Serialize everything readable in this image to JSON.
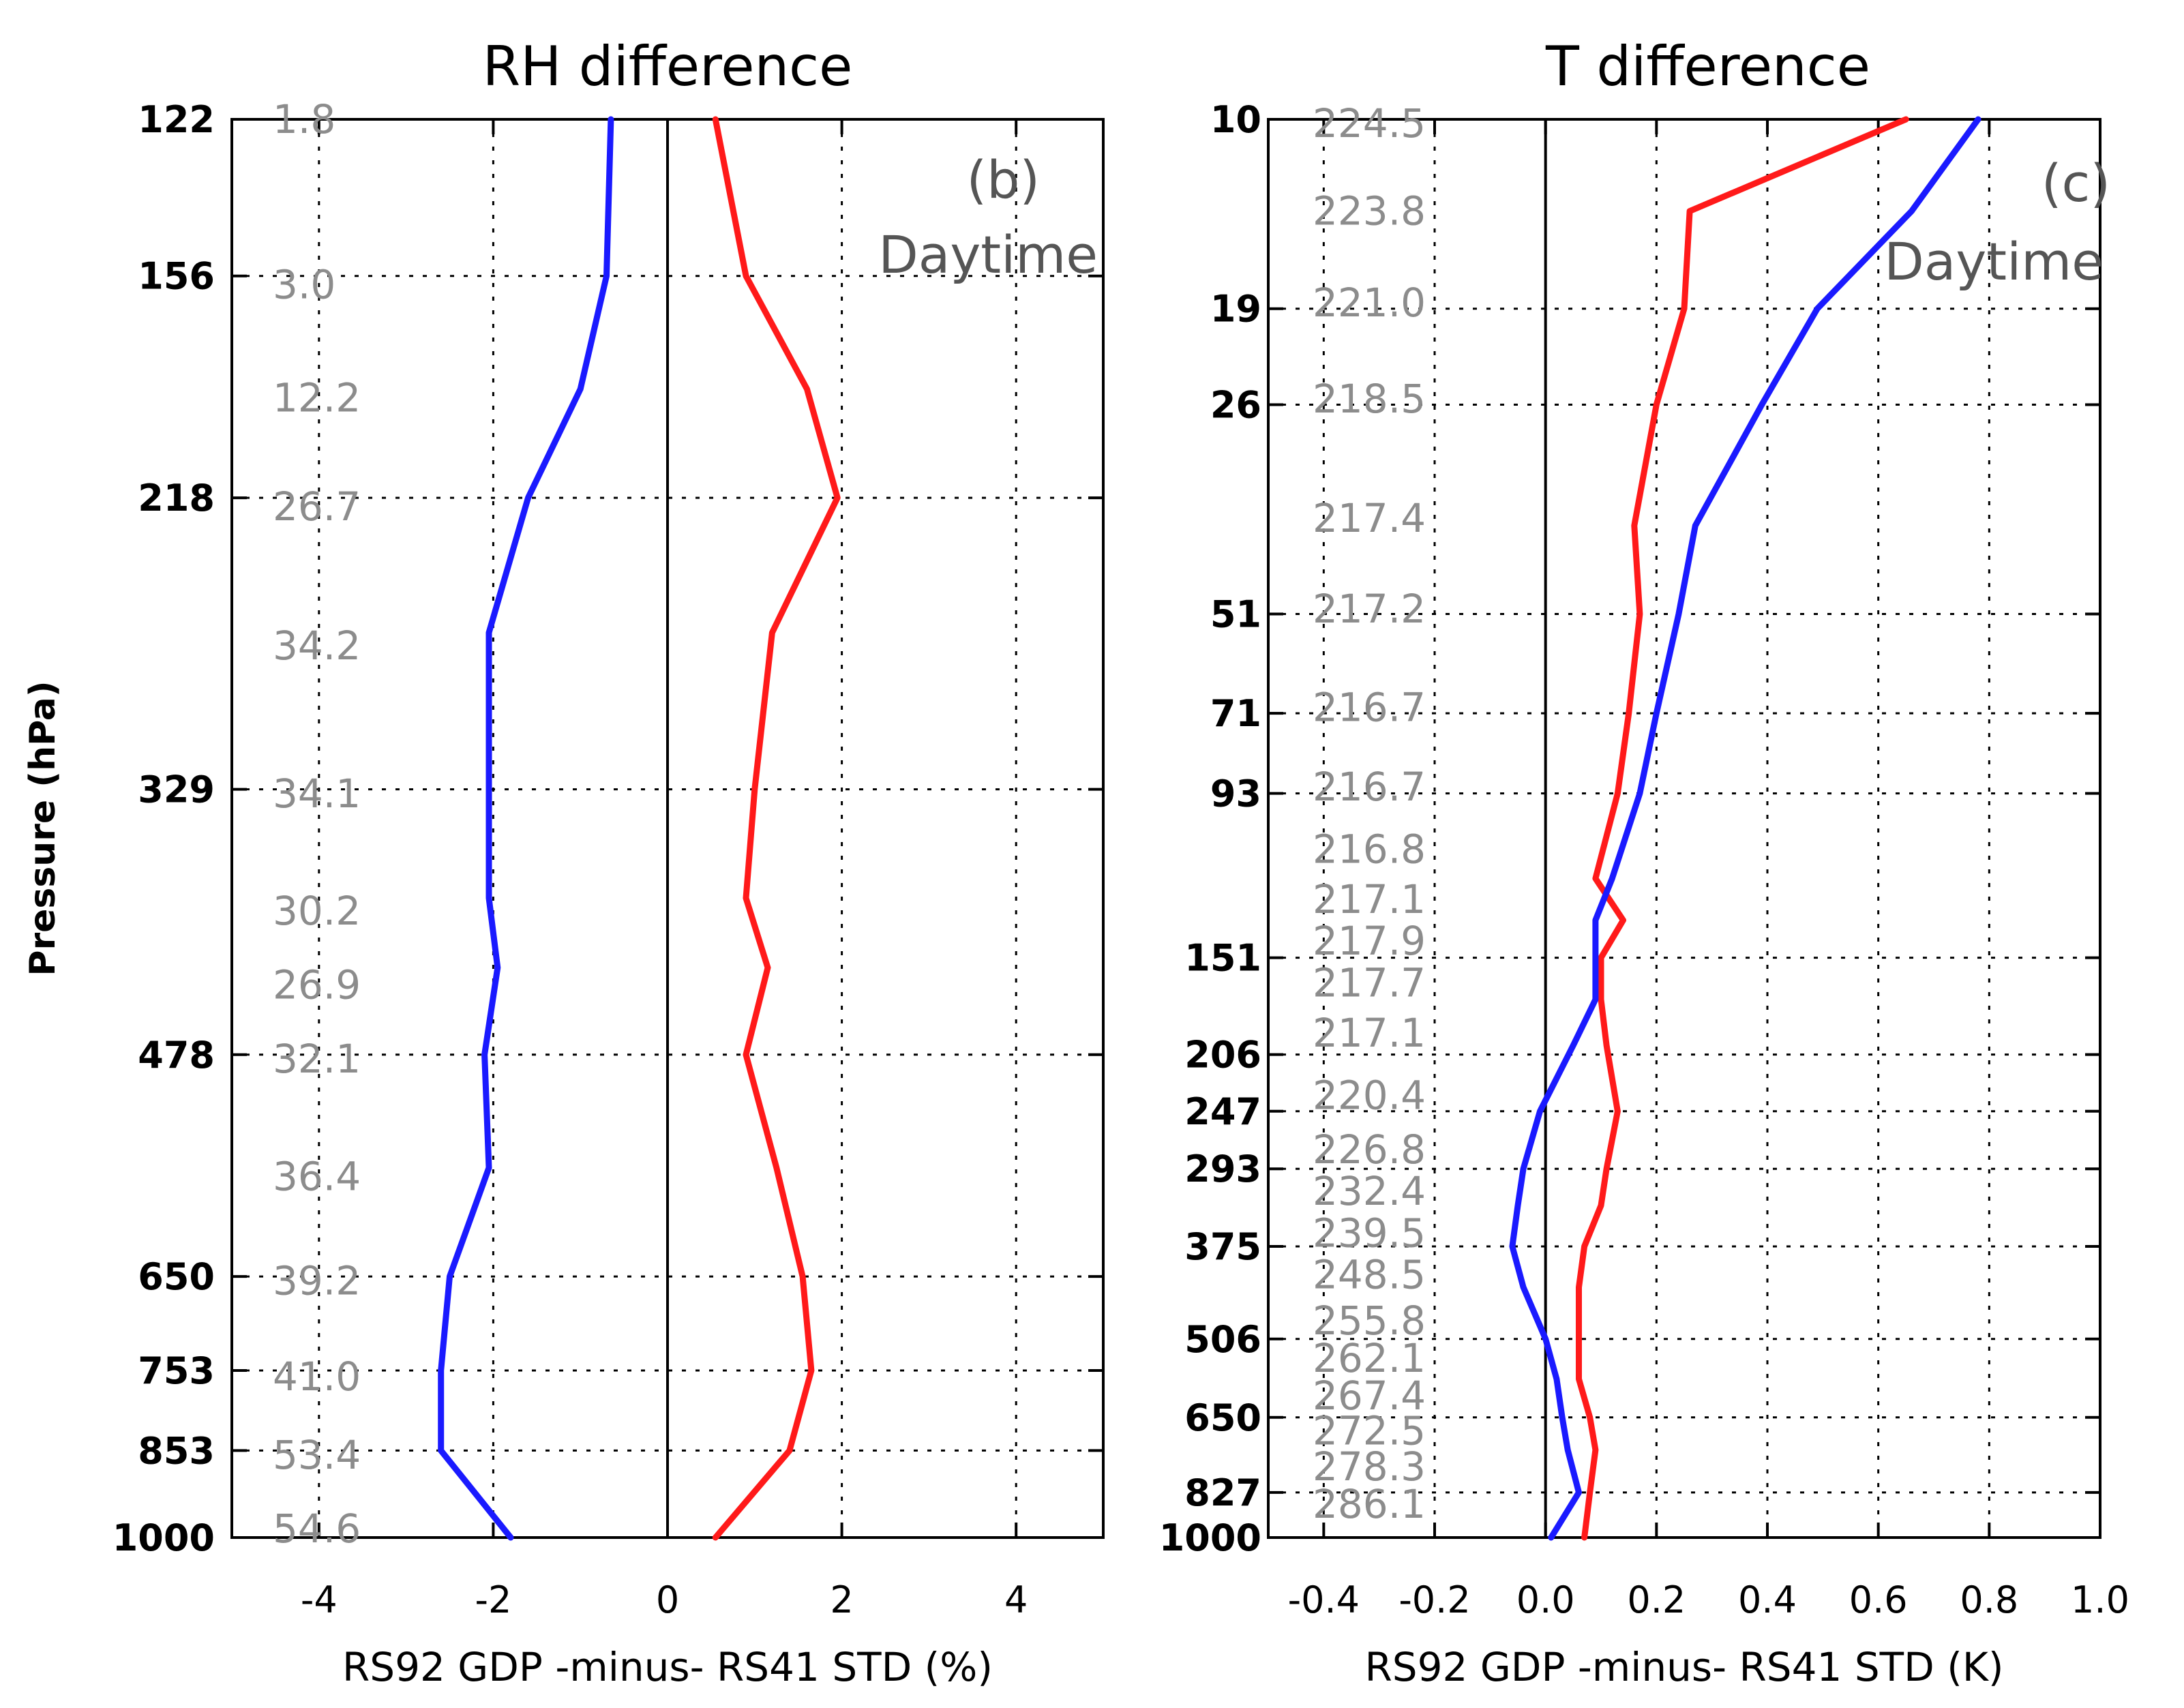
{
  "chart_data": [
    {
      "type": "line",
      "title": "RH difference",
      "panel_label": "(b)",
      "time_label": "Daytime",
      "xlabel": "RS92 GDP -minus- RS41 STD (%)",
      "ylabel": "Pressure (hPa)",
      "xlim": [
        -5,
        5
      ],
      "x_ticks": [
        "-4",
        "-2",
        "0",
        "2",
        "4"
      ],
      "x_tick_values": [
        -4,
        -2,
        0,
        2,
        4
      ],
      "y_ticks": [
        "122",
        "156",
        "218",
        "329",
        "478",
        "650",
        "753",
        "853",
        "1000"
      ],
      "y_tick_levels": [
        0,
        1.8,
        4.35,
        7.7,
        10.75,
        13.3,
        14.38,
        15.3,
        16.3
      ],
      "levels": [
        0,
        1.8,
        3.1,
        4.35,
        5.9,
        7.7,
        8.95,
        9.75,
        10.75,
        12.05,
        13.3,
        14.38,
        15.3,
        16.3
      ],
      "annotations": [
        "1.8",
        "3.0",
        "12.2",
        "26.7",
        "34.2",
        "34.1",
        "30.2",
        "26.9",
        "32.1",
        "36.4",
        "39.2",
        "41.0",
        "53.4",
        "54.6"
      ],
      "annotation_levels": [
        0.0,
        1.9,
        3.2,
        4.45,
        6.05,
        7.75,
        9.1,
        9.95,
        10.8,
        12.15,
        13.35,
        14.45,
        15.35,
        16.2
      ],
      "series": [
        {
          "name": "blue",
          "color": "#1a1aff",
          "x": [
            -0.65,
            -0.7,
            -1.0,
            -1.6,
            -2.05,
            -2.05,
            -2.05,
            -1.95,
            -2.1,
            -2.05,
            -2.5,
            -2.6,
            -2.6,
            -1.8
          ]
        },
        {
          "name": "red",
          "color": "#ff1a1a",
          "x": [
            0.55,
            0.9,
            1.6,
            1.95,
            1.2,
            1.0,
            0.9,
            1.15,
            0.9,
            1.25,
            1.55,
            1.65,
            1.4,
            0.55
          ]
        }
      ]
    },
    {
      "type": "line",
      "title": "T difference",
      "panel_label": "(c)",
      "time_label": "Daytime",
      "xlabel": "RS92 GDP -minus- RS41 STD (K)",
      "ylabel": "",
      "xlim": [
        -0.5,
        1.0
      ],
      "x_ticks": [
        "-0.4",
        "-0.2",
        "0.0",
        "0.2",
        "0.4",
        "0.6",
        "0.8",
        "1.0"
      ],
      "x_tick_values": [
        -0.4,
        -0.2,
        0.0,
        0.2,
        0.4,
        0.6,
        0.8,
        1.0
      ],
      "y_ticks": [
        "10",
        "19",
        "26",
        "51",
        "71",
        "93",
        "151",
        "206",
        "247",
        "293",
        "375",
        "506",
        "650",
        "827",
        "1000"
      ],
      "y_tick_levels": [
        0,
        2.27,
        3.42,
        5.93,
        7.12,
        8.08,
        10.05,
        11.21,
        11.89,
        12.58,
        13.51,
        14.62,
        15.56,
        16.46,
        17.0
      ],
      "levels": [
        0,
        1.1,
        2.27,
        3.42,
        4.87,
        5.93,
        7.12,
        8.08,
        9.1,
        9.6,
        10.05,
        10.55,
        11.1,
        11.89,
        12.58,
        13.02,
        13.51,
        14.0,
        14.62,
        15.1,
        15.56,
        15.95,
        16.46,
        17.0
      ],
      "annotations": [
        "224.5",
        "223.8",
        "221.0",
        "218.5",
        "217.4",
        "217.2",
        "216.7",
        "216.7",
        "216.8",
        "217.1",
        "217.9",
        "217.7",
        "217.1",
        "220.4",
        "226.8",
        "232.4",
        "239.5",
        "248.5",
        "255.8",
        "262.1",
        "267.4",
        "272.5",
        "278.3",
        "286.1"
      ],
      "annotation_levels": [
        0.05,
        1.1,
        2.2,
        3.35,
        4.78,
        5.87,
        7.05,
        8.0,
        8.75,
        9.35,
        9.85,
        10.35,
        10.95,
        11.7,
        12.35,
        12.85,
        13.35,
        13.85,
        14.4,
        14.85,
        15.3,
        15.72,
        16.15,
        16.6
      ],
      "series": [
        {
          "name": "red",
          "color": "#ff1a1a",
          "x": [
            0.65,
            0.26,
            0.25,
            0.2,
            0.16,
            0.17,
            0.15,
            0.13,
            0.09,
            0.14,
            0.1,
            0.1,
            0.11,
            0.13,
            0.11,
            0.1,
            0.07,
            0.06,
            0.06,
            0.06,
            0.08,
            0.09,
            0.08,
            0.07
          ]
        },
        {
          "name": "blue",
          "color": "#1a1aff",
          "x": [
            0.78,
            0.66,
            0.49,
            0.39,
            0.27,
            0.24,
            0.2,
            0.17,
            0.12,
            0.09,
            0.09,
            0.09,
            0.05,
            -0.01,
            -0.04,
            -0.05,
            -0.06,
            -0.04,
            0.0,
            0.02,
            0.03,
            0.04,
            0.06,
            0.01
          ]
        }
      ]
    }
  ]
}
